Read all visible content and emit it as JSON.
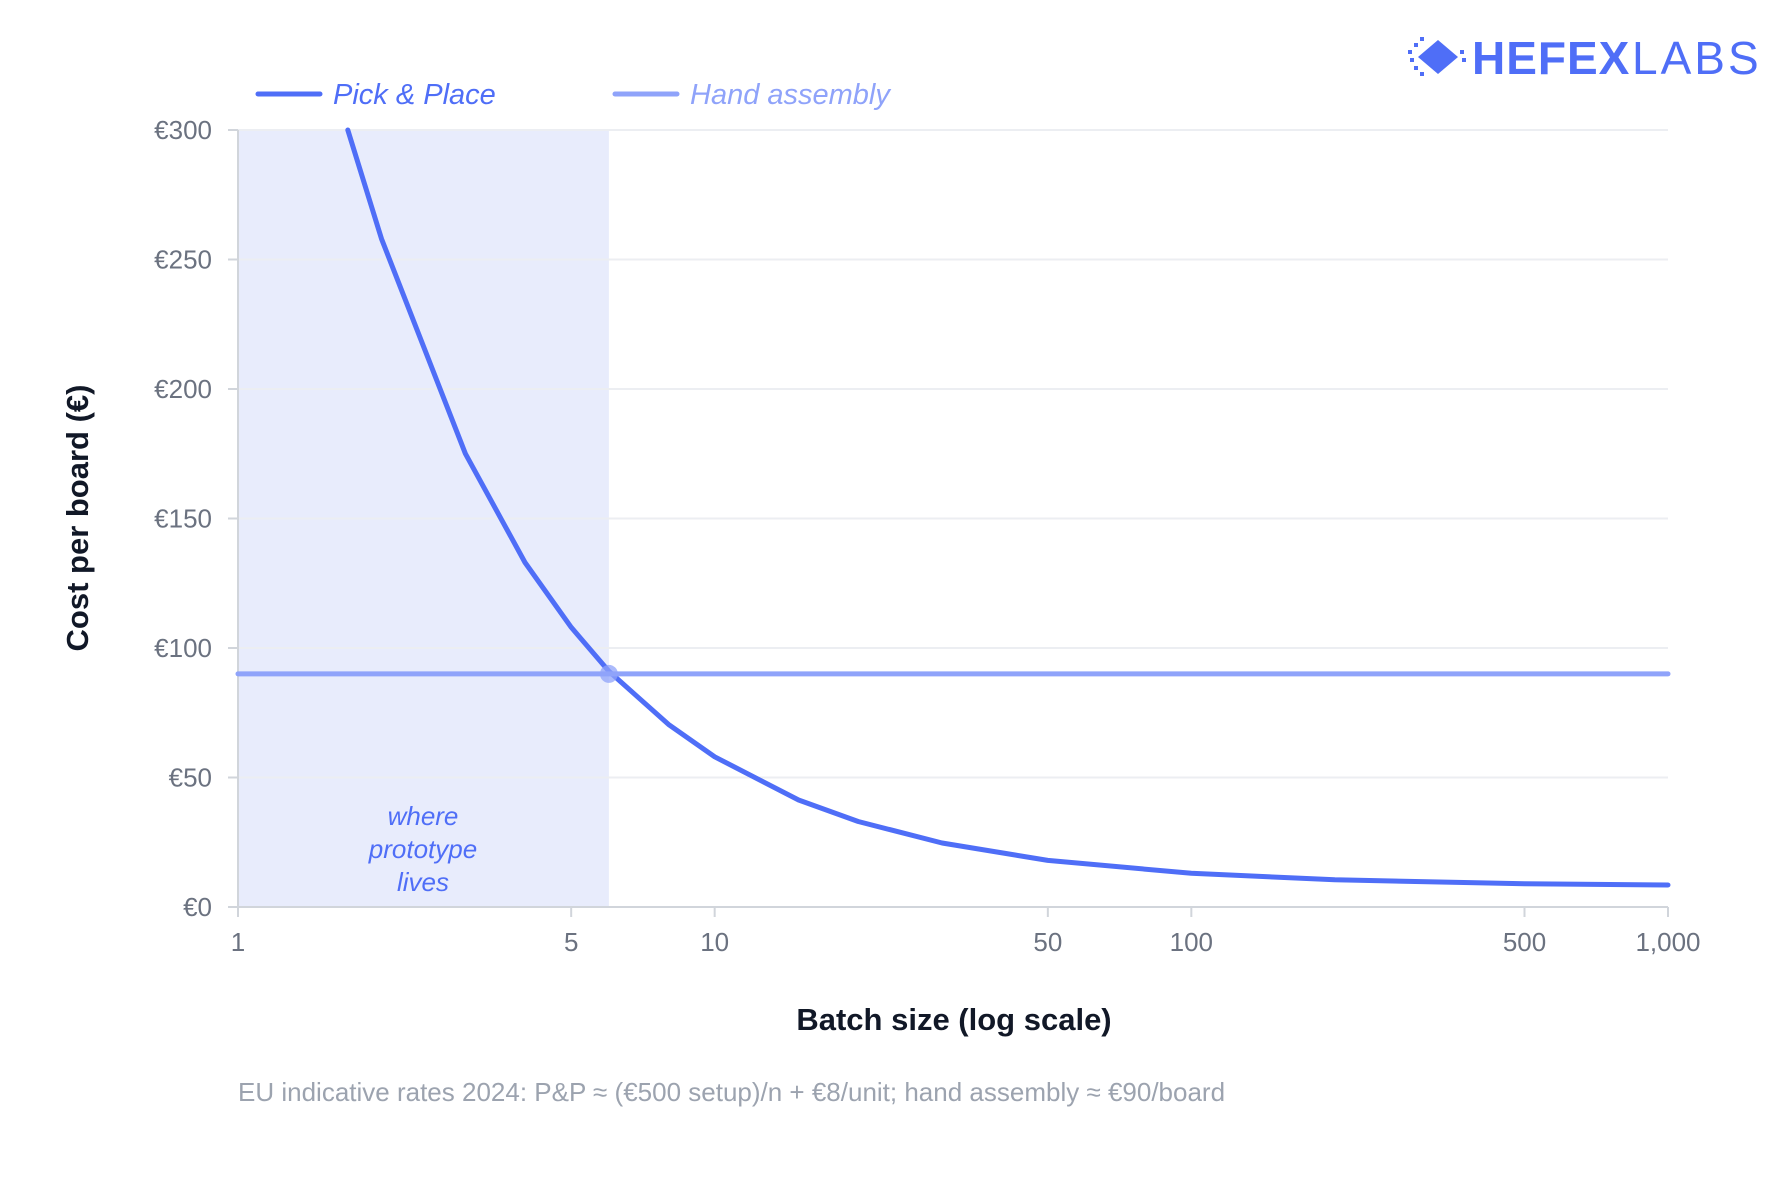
{
  "brand": {
    "name_bold": "HEFEX",
    "name_light": "LABS",
    "icon": "chip-diamond-icon",
    "color": "#4f6ef7"
  },
  "footnote": "EU indicative rates 2024: P&P ≈ (€500 setup)/n + €8/unit; hand assembly ≈ €90/board",
  "colors": {
    "pick_place": "#4f6ef7",
    "hand_assembly": "#8fa3fa",
    "shade": "#e8ecfc",
    "grid": "#eceef2",
    "axis": "#d1d5db"
  },
  "chart_data": {
    "type": "line",
    "title": "",
    "xlabel": "Batch size (log scale)",
    "ylabel": "Cost per board (€)",
    "x_scale": "log",
    "xlim": [
      1,
      1000
    ],
    "ylim": [
      0,
      300
    ],
    "x_ticks": [
      {
        "value": 1,
        "label": "1"
      },
      {
        "value": 5,
        "label": "5"
      },
      {
        "value": 10,
        "label": "10"
      },
      {
        "value": 50,
        "label": "50"
      },
      {
        "value": 100,
        "label": "100"
      },
      {
        "value": 500,
        "label": "500"
      },
      {
        "value": 1000,
        "label": "1,000"
      }
    ],
    "y_ticks": [
      {
        "value": 0,
        "label": "€0"
      },
      {
        "value": 50,
        "label": "€50"
      },
      {
        "value": 100,
        "label": "€100"
      },
      {
        "value": 150,
        "label": "€150"
      },
      {
        "value": 200,
        "label": "€200"
      },
      {
        "value": 250,
        "label": "€250"
      },
      {
        "value": 300,
        "label": "€300"
      }
    ],
    "grid": true,
    "legend": "top-left",
    "series": [
      {
        "name": "Pick & Place",
        "color": "#4f6ef7",
        "x": [
          1.7,
          2,
          3,
          4,
          5,
          6,
          8,
          10,
          15,
          20,
          30,
          50,
          100,
          200,
          500,
          1000
        ],
        "y": [
          300,
          258,
          175,
          133,
          108,
          91,
          70.5,
          58,
          41.3,
          33,
          24.7,
          18,
          13,
          10.5,
          9,
          8.5
        ]
      },
      {
        "name": "Hand assembly",
        "color": "#8fa3fa",
        "x": [
          1,
          1000
        ],
        "y": [
          90,
          90
        ]
      }
    ],
    "highlight_region": {
      "x_from": 1,
      "x_to": 6,
      "label": "where prototype lives"
    },
    "crossover_point": {
      "x": 6,
      "y": 90
    }
  }
}
